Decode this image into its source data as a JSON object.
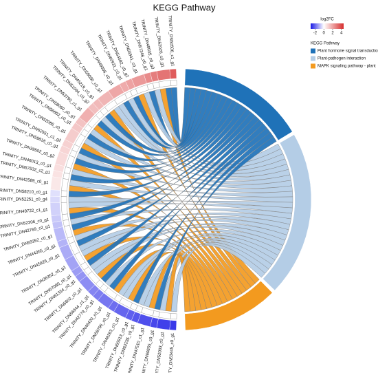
{
  "chart_data": {
    "type": "chord",
    "title": "KEGG Pathway",
    "legend_title": "KEGG Pathway",
    "colorbar_title": "log2FC",
    "colorbar_ticks": [
      -2,
      0,
      2,
      4
    ],
    "color_lim": [
      -3,
      4.5
    ],
    "color_low": "#1a1ae6",
    "color_mid": "#ffffff",
    "color_high": "#d62e2e",
    "pathways": [
      {
        "name": "Plant hormone signal transduction",
        "color": "#1f72b8"
      },
      {
        "name": "Plant-pathogen interaction",
        "color": "#b4cde6"
      },
      {
        "name": "MAPK signaling pathway - plant",
        "color": "#f39a1f"
      }
    ],
    "genes": [
      "TRINITY_DN50506_c1_g1",
      "TRINITY_DN62026_c0_g1",
      "TRINITY_DN48035_c0_g3",
      "TRINITY_DN57246_c0_g1",
      "TRINITY_DN56941_c0_g1",
      "TRINITY_DN54582_c0_g2",
      "TRINITY_DN60931_c0_g1",
      "TRINITY_DN49308_c0_g1",
      "TRINITY_DN59080_c0_g1",
      "TRINITY_DN45219_c0_g1",
      "TRINITY_DN51094_c0_g2",
      "TRINITY_DN53790_c1_g1",
      "TRINITY_DN58060_c0_g1",
      "TRINITY_DN56802_c0_g1",
      "TRINITY_DN52086_c0_g1",
      "TRINITY_DN62551_c1_g2",
      "TRINITY_DN59818_c0_g1",
      "TRINITY_DN39502_c0_g2",
      "TRINITY_DN46013_c0_g1",
      "TRINITY_DN57532_c2_g1",
      "TRINITY_DN42589_c0_g1",
      "TRINITY_DN58210_c0_g1",
      "TRINITY_DN52251_c0_g4",
      "TRINITY_DN49722_c1_g1",
      "TRINITY_DN52306_c0_g1",
      "TRINITY_DN42769_c2_g1",
      "TRINITY_DN59352_c0_g1",
      "TRINITY_DN44355_c0_g1",
      "TRINITY_DN45926_c0_g1",
      "TRINITY_DN36352_c0_g1",
      "TRINITY_DN57080_c0_g1",
      "TRINITY_DN61334_c0_g1",
      "TRINITY_DN6602_c0_g1",
      "TRINITY_DN56944_c1_g1",
      "TRINITY_DN42779_c0_g1",
      "TRINITY_DN46420_c0_g1",
      "TRINITY_DN58796_c0_g1",
      "TRINITY_DN48263_c0_g1",
      "TRINITY_DN60913_c0_g1",
      "TRINITY_DN62235_c0_g1",
      "TRINITY_DN47510_c1_g1",
      "TRINITY_DN60655_c0_g1",
      "TRINITY_DN52003_c0_g1",
      "TRINITY_DN53445_c0_g1"
    ],
    "log2fc": [
      3.5,
      3.0,
      2.8,
      2.5,
      2.2,
      2.0,
      1.8,
      1.9,
      1.6,
      1.5,
      1.4,
      1.7,
      1.3,
      1.2,
      1.1,
      1.0,
      0.9,
      0.8,
      0.7,
      0.6,
      0.5,
      -0.4,
      -0.5,
      -0.6,
      -0.7,
      -0.8,
      -0.9,
      -1.0,
      -1.1,
      -1.2,
      -1.3,
      -1.4,
      -1.5,
      -1.6,
      -1.7,
      -1.8,
      -1.9,
      -2.0,
      -2.1,
      -2.2,
      -2.3,
      -2.4,
      -2.5,
      -2.6
    ],
    "membership": [
      [
        1,
        0,
        0
      ],
      [
        1,
        0,
        1
      ],
      [
        0,
        1,
        0
      ],
      [
        1,
        0,
        0
      ],
      [
        0,
        1,
        1
      ],
      [
        1,
        0,
        0
      ],
      [
        0,
        1,
        0
      ],
      [
        1,
        1,
        0
      ],
      [
        0,
        1,
        1
      ],
      [
        1,
        0,
        0
      ],
      [
        0,
        1,
        0
      ],
      [
        1,
        0,
        1
      ],
      [
        0,
        1,
        0
      ],
      [
        1,
        0,
        0
      ],
      [
        0,
        1,
        1
      ],
      [
        1,
        0,
        0
      ],
      [
        0,
        1,
        0
      ],
      [
        1,
        0,
        1
      ],
      [
        0,
        1,
        0
      ],
      [
        1,
        0,
        0
      ],
      [
        0,
        1,
        1
      ],
      [
        1,
        0,
        0
      ],
      [
        0,
        1,
        0
      ],
      [
        0,
        1,
        1
      ],
      [
        1,
        0,
        0
      ],
      [
        0,
        1,
        0
      ],
      [
        1,
        0,
        1
      ],
      [
        0,
        1,
        0
      ],
      [
        1,
        1,
        0
      ],
      [
        0,
        1,
        1
      ],
      [
        1,
        0,
        0
      ],
      [
        0,
        1,
        0
      ],
      [
        0,
        1,
        1
      ],
      [
        1,
        0,
        0
      ],
      [
        0,
        1,
        0
      ],
      [
        1,
        0,
        1
      ],
      [
        0,
        1,
        0
      ],
      [
        0,
        1,
        1
      ],
      [
        1,
        0,
        0
      ],
      [
        0,
        1,
        0
      ],
      [
        0,
        1,
        1
      ],
      [
        1,
        0,
        0
      ],
      [
        0,
        1,
        1
      ],
      [
        0,
        1,
        0
      ]
    ]
  }
}
